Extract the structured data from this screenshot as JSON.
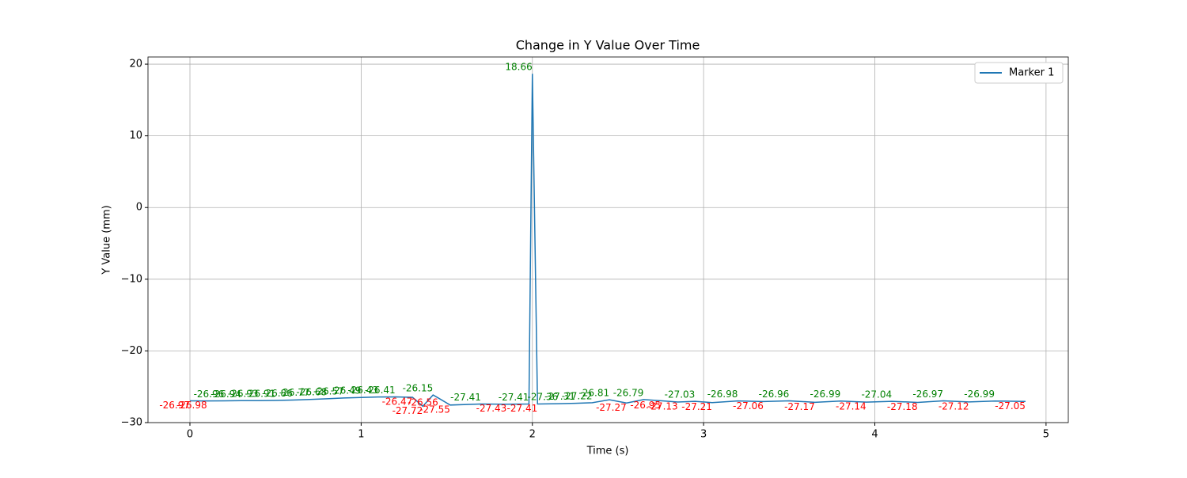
{
  "chart_data": {
    "type": "line",
    "title": "Change in Y Value Over Time",
    "x_label": "Time (s)",
    "y_label": "Y Value (mm)",
    "x": [
      0,
      0.1,
      0.2,
      0.3,
      0.4,
      0.5,
      0.6,
      0.7,
      0.8,
      0.9,
      1.0,
      1.1,
      1.2,
      1.3,
      1.36,
      1.42,
      1.45,
      1.52,
      1.7,
      1.85,
      1.98,
      2.0,
      2.03,
      2.15,
      2.25,
      2.35,
      2.45,
      2.55,
      2.65,
      2.75,
      2.85,
      2.95,
      3.05,
      3.2,
      3.35,
      3.5,
      3.65,
      3.8,
      3.95,
      4.1,
      4.25,
      4.4,
      4.55,
      4.7,
      4.88
    ],
    "series": [
      {
        "name": "Marker 1",
        "color": "#1f77b4",
        "values": [
          -26.97,
          -26.98,
          -26.96,
          -26.94,
          -26.93,
          -26.91,
          -26.86,
          -26.77,
          -26.68,
          -26.57,
          -26.49,
          -26.43,
          -26.41,
          -26.47,
          -27.72,
          -26.15,
          -26.56,
          -27.55,
          -27.41,
          -27.43,
          -27.41,
          18.66,
          -27.41,
          -27.36,
          -27.31,
          -27.22,
          -26.81,
          -27.27,
          -26.79,
          -26.95,
          -27.13,
          -27.03,
          -27.21,
          -26.98,
          -27.06,
          -26.96,
          -27.17,
          -26.99,
          -27.14,
          -27.04,
          -27.18,
          -26.97,
          -27.12,
          -26.99,
          -27.05
        ]
      }
    ],
    "rise_label_color": "green",
    "fall_label_color": "red",
    "xlim": [
      -0.245,
      5.13
    ],
    "ylim": [
      -30,
      21
    ],
    "xticks": [
      0,
      1,
      2,
      3,
      4,
      5
    ],
    "yticks": [
      {
        "value": -30,
        "label": "−30"
      },
      {
        "value": -20,
        "label": "−20"
      },
      {
        "value": -10,
        "label": "−10"
      },
      0,
      10,
      20
    ],
    "grid": true,
    "legend": "upper right"
  }
}
